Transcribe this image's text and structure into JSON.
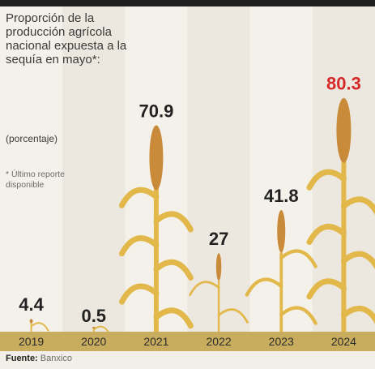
{
  "header": {
    "title": "Proporción de la producción agrícola nacional expuesta a la sequía en mayo*:",
    "subtitle": "(porcentaje)",
    "footnote": "* Último reporte disponible"
  },
  "source": {
    "label": "Fuente:",
    "value": "Banxico"
  },
  "colors": {
    "background": "#f2efe8",
    "axis_band": "#c9ad5e",
    "value_text": "#222222",
    "highlight_value_text": "#d62828",
    "corn_leaf": "#e2b84a",
    "corn_cob": "#c98a3a"
  },
  "chart_data": {
    "type": "bar",
    "categories": [
      "2019",
      "2020",
      "2021",
      "2022",
      "2023",
      "2024"
    ],
    "values": [
      4.4,
      0.5,
      70.9,
      27,
      41.8,
      80.3
    ],
    "value_labels": [
      "4.4",
      "0.5",
      "70.9",
      "27",
      "41.8",
      "80.3"
    ],
    "highlight_index": 5,
    "ylim": [
      0,
      100
    ],
    "grid": false,
    "legend": "none"
  }
}
